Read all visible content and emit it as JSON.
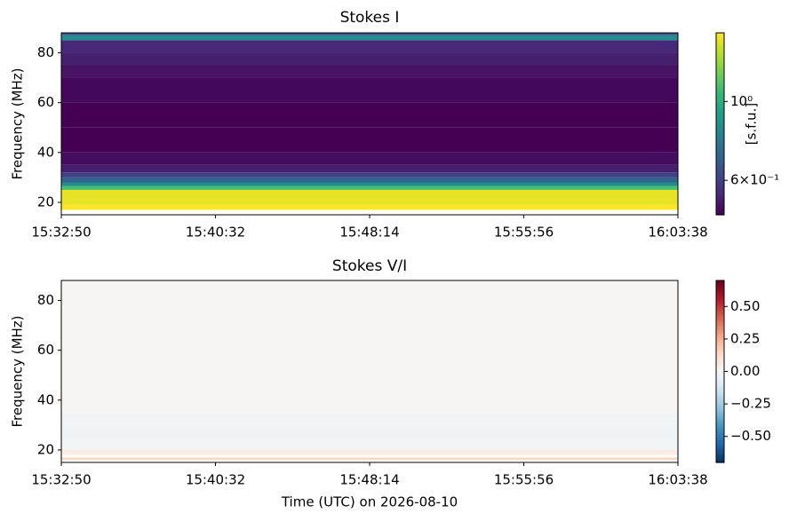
{
  "chart_data": [
    {
      "type": "heatmap",
      "title": "Stokes I",
      "ylabel": "Frequency (MHz)",
      "xlim": [
        "15:32:50",
        "16:03:38"
      ],
      "xticks": [
        "15:32:50",
        "15:40:32",
        "15:48:14",
        "15:55:56",
        "16:03:38"
      ],
      "ylim": [
        15,
        88
      ],
      "yticks": [
        20,
        40,
        60,
        80
      ],
      "y_edges": [
        15,
        17,
        19,
        25,
        26.5,
        28,
        30,
        32,
        35,
        40,
        50,
        60,
        70,
        75,
        80,
        85,
        87,
        88
      ],
      "values": [
        null,
        1.56,
        1.5,
        1.1,
        0.85,
        0.7,
        0.6,
        0.53,
        0.5,
        0.48,
        0.48,
        0.49,
        0.51,
        0.53,
        0.55,
        0.85,
        0.65
      ],
      "colormap": "viridis",
      "log": true,
      "clim": [
        0.48,
        1.56
      ],
      "cticks": [
        {
          "value": 0.6,
          "label": "6×10⁻¹"
        },
        {
          "value": 1,
          "label": "10⁰"
        }
      ],
      "clabel": "[s.f.u.]"
    },
    {
      "type": "heatmap",
      "title": "Stokes V/I",
      "ylabel": "Frequency (MHz)",
      "xlabel": "Time (UTC) on 2026-08-10",
      "xlim": [
        "15:32:50",
        "16:03:38"
      ],
      "xticks": [
        "15:32:50",
        "15:40:32",
        "15:48:14",
        "15:55:56",
        "16:03:38"
      ],
      "ylim": [
        15,
        88
      ],
      "yticks": [
        20,
        40,
        60,
        80
      ],
      "y_edges": [
        15,
        16,
        17,
        18,
        20,
        25,
        30,
        35,
        88
      ],
      "values": [
        null,
        0.15,
        null,
        0.05,
        -0.02,
        -0.03,
        -0.02,
        0.01
      ],
      "colormap": "RdBu_r",
      "log": false,
      "clim": [
        -0.7,
        0.7
      ],
      "cticks": [
        {
          "value": -0.5,
          "label": "−0.50"
        },
        {
          "value": -0.25,
          "label": "−0.25"
        },
        {
          "value": 0,
          "label": "0.00"
        },
        0.25,
        {
          "value": 0.5,
          "label": "0.50"
        }
      ]
    }
  ]
}
